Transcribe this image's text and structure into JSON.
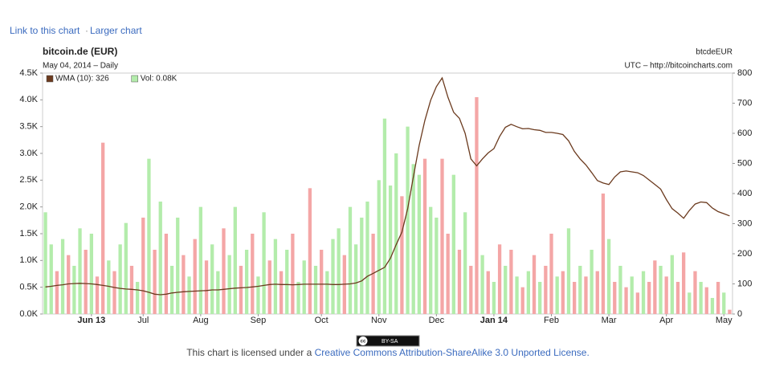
{
  "header": {
    "link_chart": "Link to this chart",
    "separator": "·",
    "link_larger": "Larger chart"
  },
  "chart_data": {
    "type": "bar-line",
    "title": "bitcoin.de (EUR)",
    "subtitle": "May 04, 2014 – Daily",
    "symbol": "btcdeEUR",
    "source": "UTC – http://bitcoincharts.com",
    "categories": [
      null,
      null,
      null,
      null,
      null,
      null,
      null,
      null,
      "Jun 13",
      null,
      null,
      null,
      null,
      null,
      null,
      null,
      null,
      "Jul",
      null,
      null,
      null,
      null,
      null,
      null,
      null,
      null,
      null,
      "Aug",
      null,
      null,
      null,
      null,
      null,
      null,
      null,
      null,
      null,
      "Sep",
      null,
      null,
      null,
      null,
      null,
      null,
      null,
      null,
      null,
      null,
      "Oct",
      null,
      null,
      null,
      null,
      null,
      null,
      null,
      null,
      null,
      "Nov",
      null,
      null,
      null,
      null,
      null,
      null,
      null,
      null,
      null,
      "Dec",
      null,
      null,
      null,
      null,
      null,
      null,
      null,
      null,
      null,
      "Jan 14",
      null,
      null,
      null,
      null,
      null,
      null,
      null,
      null,
      null,
      "Feb",
      null,
      null,
      null,
      null,
      null,
      null,
      null,
      null,
      null,
      "Mar",
      null,
      null,
      null,
      null,
      null,
      null,
      null,
      null,
      null,
      "Apr",
      null,
      null,
      null,
      null,
      null,
      null,
      null,
      null,
      null,
      "May",
      null
    ],
    "ylim": [
      0,
      4.5
    ],
    "yticks": [
      {
        "value": 0,
        "label": "0.0K"
      },
      {
        "value": 0.5,
        "label": "0.5K"
      },
      {
        "value": 1,
        "label": "1.0K"
      },
      {
        "value": 1.5,
        "label": "1.5K"
      },
      {
        "value": 2,
        "label": "2.0K"
      },
      {
        "value": 2.5,
        "label": "2.5K"
      },
      {
        "value": 3,
        "label": "3.0K"
      },
      {
        "value": 3.5,
        "label": "3.5K"
      },
      {
        "value": 4,
        "label": "4.0K"
      },
      {
        "value": 4.5,
        "label": "4.5K"
      }
    ],
    "y2lim": [
      0,
      800
    ],
    "y2ticks": [
      0,
      100,
      200,
      300,
      400,
      500,
      600,
      700,
      800
    ],
    "legend": "top-left",
    "series": [
      {
        "name": "WMA (10): 326",
        "type": "line",
        "axis": "y2",
        "color": "#6b3a1e",
        "values": [
          90,
          92,
          95,
          97,
          100,
          101,
          102,
          101,
          100,
          98,
          95,
          92,
          88,
          85,
          83,
          82,
          80,
          77,
          72,
          66,
          64,
          66,
          70,
          72,
          74,
          75,
          76,
          77,
          78,
          80,
          80,
          82,
          84,
          86,
          87,
          88,
          90,
          92,
          95,
          98,
          99,
          98,
          98,
          97,
          98,
          99,
          99,
          99,
          99,
          99,
          98,
          98,
          99,
          100,
          103,
          110,
          125,
          135,
          145,
          155,
          185,
          230,
          272,
          350,
          456,
          560,
          643,
          710,
          755,
          784,
          720,
          670,
          650,
          600,
          515,
          492,
          515,
          535,
          549,
          590,
          620,
          630,
          622,
          615,
          616,
          612,
          610,
          603,
          603,
          600,
          596,
          575,
          540,
          515,
          495,
          470,
          443,
          435,
          430,
          455,
          472,
          475,
          472,
          469,
          460,
          445,
          430,
          415,
          380,
          350,
          335,
          318,
          344,
          365,
          372,
          370,
          352,
          340,
          333,
          326
        ]
      },
      {
        "name": "Vol: 0.08K",
        "type": "bar",
        "axis": "y",
        "color": "#b3ecab",
        "values": [
          1.9,
          1.3,
          0.8,
          1.4,
          1.1,
          0.9,
          1.6,
          1.2,
          1.5,
          0.7,
          3.2,
          1.0,
          0.8,
          1.3,
          1.7,
          0.9,
          0.6,
          1.8,
          2.9,
          1.2,
          2.1,
          1.5,
          0.9,
          1.8,
          1.1,
          0.7,
          1.4,
          2.0,
          1.0,
          1.3,
          0.8,
          1.6,
          1.1,
          2.0,
          0.9,
          1.2,
          1.5,
          0.7,
          1.9,
          1.0,
          1.4,
          0.8,
          1.2,
          1.5,
          0.6,
          1.0,
          2.35,
          0.9,
          1.2,
          0.8,
          1.4,
          1.6,
          1.1,
          2.0,
          1.3,
          1.8,
          2.1,
          1.5,
          2.5,
          3.65,
          2.4,
          3.0,
          2.2,
          3.5,
          2.8,
          2.6,
          2.9,
          2.0,
          1.8,
          2.9,
          1.5,
          2.6,
          1.2,
          1.9,
          0.9,
          4.05,
          1.1,
          0.8,
          0.6,
          1.3,
          0.9,
          1.2,
          0.7,
          0.5,
          0.8,
          1.1,
          0.6,
          0.9,
          1.5,
          0.7,
          0.8,
          1.6,
          0.6,
          0.9,
          0.7,
          1.2,
          0.8,
          2.25,
          1.4,
          0.6,
          0.9,
          0.5,
          0.7,
          0.4,
          0.8,
          0.6,
          1.0,
          0.9,
          0.7,
          1.1,
          0.6,
          1.15,
          0.4,
          0.8,
          0.6,
          0.5,
          0.3,
          0.6,
          0.4,
          0.08
        ],
        "colors": [
          "#b3ecab",
          "#b3ecab",
          "#f4a6a6",
          "#b3ecab",
          "#f4a6a6",
          "#b3ecab",
          "#b3ecab",
          "#f4a6a6",
          "#b3ecab",
          "#f4a6a6",
          "#f4a6a6",
          "#b3ecab",
          "#f4a6a6",
          "#b3ecab",
          "#b3ecab",
          "#f4a6a6",
          "#b3ecab",
          "#f4a6a6",
          "#b3ecab",
          "#f4a6a6",
          "#b3ecab",
          "#f4a6a6",
          "#b3ecab",
          "#b3ecab",
          "#f4a6a6",
          "#b3ecab",
          "#f4a6a6",
          "#b3ecab",
          "#f4a6a6",
          "#b3ecab",
          "#b3ecab",
          "#f4a6a6",
          "#b3ecab",
          "#b3ecab",
          "#f4a6a6",
          "#b3ecab",
          "#f4a6a6",
          "#b3ecab",
          "#b3ecab",
          "#f4a6a6",
          "#b3ecab",
          "#f4a6a6",
          "#b3ecab",
          "#f4a6a6",
          "#b3ecab",
          "#b3ecab",
          "#f4a6a6",
          "#b3ecab",
          "#f4a6a6",
          "#b3ecab",
          "#b3ecab",
          "#b3ecab",
          "#f4a6a6",
          "#b3ecab",
          "#b3ecab",
          "#b3ecab",
          "#b3ecab",
          "#f4a6a6",
          "#b3ecab",
          "#b3ecab",
          "#b3ecab",
          "#b3ecab",
          "#f4a6a6",
          "#b3ecab",
          "#b3ecab",
          "#b3ecab",
          "#f4a6a6",
          "#b3ecab",
          "#b3ecab",
          "#f4a6a6",
          "#f4a6a6",
          "#b3ecab",
          "#f4a6a6",
          "#b3ecab",
          "#f4a6a6",
          "#f4a6a6",
          "#b3ecab",
          "#f4a6a6",
          "#b3ecab",
          "#f4a6a6",
          "#b3ecab",
          "#f4a6a6",
          "#b3ecab",
          "#f4a6a6",
          "#b3ecab",
          "#f4a6a6",
          "#b3ecab",
          "#f4a6a6",
          "#f4a6a6",
          "#b3ecab",
          "#f4a6a6",
          "#b3ecab",
          "#f4a6a6",
          "#b3ecab",
          "#f4a6a6",
          "#b3ecab",
          "#f4a6a6",
          "#f4a6a6",
          "#b3ecab",
          "#f4a6a6",
          "#b3ecab",
          "#f4a6a6",
          "#b3ecab",
          "#f4a6a6",
          "#b3ecab",
          "#f4a6a6",
          "#f4a6a6",
          "#b3ecab",
          "#f4a6a6",
          "#b3ecab",
          "#f4a6a6",
          "#f4a6a6",
          "#b3ecab",
          "#f4a6a6",
          "#b3ecab",
          "#f4a6a6",
          "#b3ecab",
          "#f4a6a6",
          "#b3ecab",
          "#f4a6a6"
        ]
      }
    ]
  },
  "footer": {
    "badge_icon": "cc",
    "badge": "BY-SA",
    "text": "This chart is licensed under a ",
    "link": "Creative Commons Attribution-ShareAlike 3.0 Unported License."
  }
}
